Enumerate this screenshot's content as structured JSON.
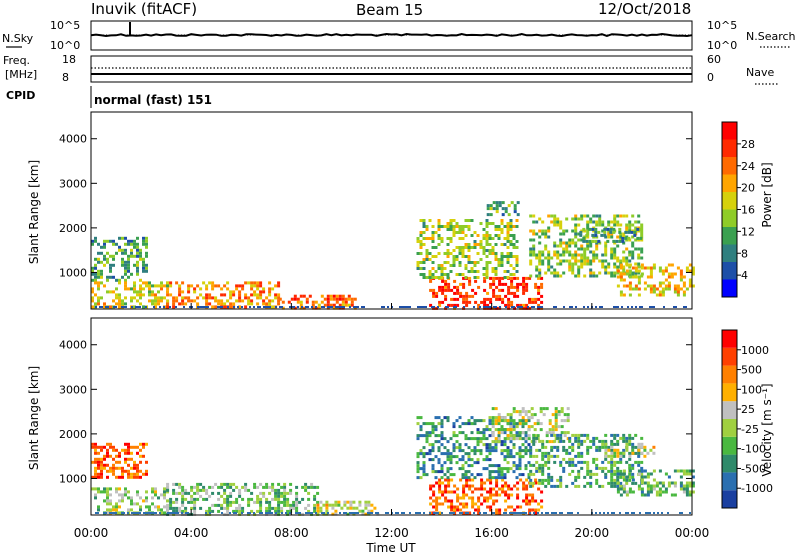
{
  "header": {
    "station": "Inuvik (fitACF)",
    "beam": "Beam 15",
    "date": "12/Oct/2018"
  },
  "params": {
    "nsky_label": "N.Sky",
    "nsky_ticks": [
      "10^5",
      "10^0"
    ],
    "nsearch_label": "N.Search",
    "nsearch_ticks": [
      "10^5",
      "10^0"
    ],
    "freq_label": "Freq.",
    "freq_unit": "[MHz]",
    "freq_ticks": [
      "18",
      "8"
    ],
    "nave_label": "Nave",
    "nave_ticks": [
      "60",
      "0"
    ],
    "cpid_label": "CPID",
    "cpid_value": "normal (fast) 151"
  },
  "colors": {
    "power_scale": [
      "#0000ff",
      "#1d4fa8",
      "#2f7f7f",
      "#3aa050",
      "#8fcc28",
      "#d6d10c",
      "#ffa500",
      "#ff6a00",
      "#ff2a00",
      "#ff0000"
    ],
    "velocity_scale": [
      "#1a3fa0",
      "#2a6fb0",
      "#2f8a6a",
      "#4ab840",
      "#a0d040",
      "#c0c0c0",
      "#ffb000",
      "#ff8000",
      "#ff4000",
      "#ff0000"
    ]
  },
  "x_ticks": [
    "00:00",
    "04:00",
    "08:00",
    "12:00",
    "16:00",
    "20:00",
    "00:00"
  ],
  "x_title": "Time UT",
  "chart_data": [
    {
      "type": "heatmap",
      "name": "power",
      "ylabel": "Slant Range [km]",
      "yticks": [
        "4000",
        "3000",
        "2000",
        "1000"
      ],
      "ylim": [
        180,
        4600
      ],
      "xlim_hours": [
        0,
        24
      ],
      "colorbar_label": "Power [dB]",
      "colorbar_ticks": [
        "28",
        "24",
        "20",
        "16",
        "12",
        "8",
        "4"
      ],
      "colorbar_range": [
        0,
        30
      ],
      "regions": [
        {
          "t0": 0.0,
          "t1": 2.2,
          "r0": 800,
          "r1": 1800,
          "level": 0.35
        },
        {
          "t0": 0.0,
          "t1": 3.0,
          "r0": 250,
          "r1": 800,
          "level": 0.55
        },
        {
          "t0": 3.0,
          "t1": 7.5,
          "r0": 200,
          "r1": 800,
          "level": 0.7
        },
        {
          "t0": 7.5,
          "t1": 10.5,
          "r0": 180,
          "r1": 500,
          "level": 0.75
        },
        {
          "t0": 13.5,
          "t1": 18.0,
          "r0": 200,
          "r1": 900,
          "level": 0.85
        },
        {
          "t0": 13.0,
          "t1": 17.0,
          "r0": 900,
          "r1": 2200,
          "level": 0.45
        },
        {
          "t0": 15.8,
          "t1": 17.0,
          "r0": 2300,
          "r1": 2600,
          "level": 0.35
        },
        {
          "t0": 17.5,
          "t1": 22.0,
          "r0": 900,
          "r1": 2300,
          "level": 0.45
        },
        {
          "t0": 19.5,
          "t1": 22.0,
          "r0": 1700,
          "r1": 2000,
          "level": 0.3
        },
        {
          "t0": 21.0,
          "t1": 24.0,
          "r0": 500,
          "r1": 1200,
          "level": 0.6
        }
      ]
    },
    {
      "type": "heatmap",
      "name": "velocity",
      "ylabel": "Slant Range [km]",
      "yticks": [
        "4000",
        "3000",
        "2000",
        "1000"
      ],
      "ylim": [
        180,
        4600
      ],
      "xlim_hours": [
        0,
        24
      ],
      "colorbar_label": "Velocity [m s⁻¹]",
      "colorbar_ticks": [
        "1000",
        "500",
        "100",
        "25",
        "-25",
        "-100",
        "-500",
        "-1000"
      ],
      "colorbar_range": [
        -1000,
        1000
      ],
      "regions": [
        {
          "t0": 0.0,
          "t1": 2.2,
          "r0": 1000,
          "r1": 1800,
          "level": 0.8
        },
        {
          "t0": 0.0,
          "t1": 3.0,
          "r0": 250,
          "r1": 800,
          "level": 0.45
        },
        {
          "t0": 3.0,
          "t1": 9.0,
          "r0": 200,
          "r1": 900,
          "level": 0.4
        },
        {
          "t0": 9.0,
          "t1": 11.5,
          "r0": 180,
          "r1": 500,
          "level": 0.55
        },
        {
          "t0": 13.5,
          "t1": 18.0,
          "r0": 250,
          "r1": 1000,
          "level": 0.8
        },
        {
          "t0": 13.0,
          "t1": 17.5,
          "r0": 1000,
          "r1": 2400,
          "level": 0.25
        },
        {
          "t0": 16.0,
          "t1": 19.0,
          "r0": 1800,
          "r1": 2600,
          "level": 0.5
        },
        {
          "t0": 17.5,
          "t1": 22.0,
          "r0": 800,
          "r1": 2000,
          "level": 0.3
        },
        {
          "t0": 20.5,
          "t1": 22.5,
          "r0": 1500,
          "r1": 1800,
          "level": 0.55
        },
        {
          "t0": 21.0,
          "t1": 24.0,
          "r0": 600,
          "r1": 1200,
          "level": 0.35
        }
      ]
    }
  ]
}
